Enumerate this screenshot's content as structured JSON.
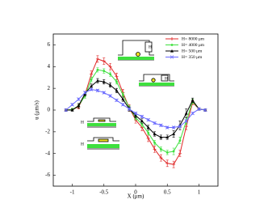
{
  "chart_data": {
    "type": "line",
    "xlabel": "X (μm)",
    "ylabel": "u (μm/s)",
    "x": [
      -1.1,
      -1.0,
      -0.9,
      -0.8,
      -0.7,
      -0.6,
      -0.5,
      -0.4,
      -0.3,
      -0.2,
      -0.1,
      0,
      0.1,
      0.2,
      0.3,
      0.4,
      0.5,
      0.6,
      0.7,
      0.8,
      0.9,
      1.0,
      1.1
    ],
    "series": [
      {
        "name": "H= 8000 μm",
        "color": "#e02828",
        "marker": "plus",
        "values": [
          0,
          0.05,
          0.3,
          1.4,
          3.3,
          4.7,
          4.5,
          4.0,
          3.1,
          1.6,
          0.2,
          -0.9,
          -1.6,
          -2.6,
          -3.6,
          -4.4,
          -4.9,
          -5.0,
          -4.0,
          -1.5,
          0.7,
          0.1,
          0
        ],
        "errors": [
          0.1,
          0.1,
          0.2,
          0.3,
          0.3,
          0.3,
          0.3,
          0.3,
          0.3,
          0.3,
          0.3,
          0.3,
          0.3,
          0.3,
          0.3,
          0.3,
          0.3,
          0.3,
          0.3,
          0.3,
          0.2,
          0.1,
          0.1
        ]
      },
      {
        "name": "H= 4000 μm",
        "color": "#3ee03e",
        "marker": "dot",
        "values": [
          0,
          0.05,
          0.4,
          1.3,
          2.8,
          3.7,
          3.6,
          3.3,
          2.6,
          1.4,
          0.2,
          -0.7,
          -1.3,
          -2.1,
          -3.0,
          -3.6,
          -3.9,
          -3.8,
          -2.8,
          -1.0,
          0.8,
          0.1,
          0
        ],
        "errors": [
          0.1,
          0.1,
          0.2,
          0.2,
          0.2,
          0.2,
          0.2,
          0.2,
          0.2,
          0.2,
          0.2,
          0.2,
          0.2,
          0.2,
          0.2,
          0.2,
          0.2,
          0.3,
          0.3,
          0.3,
          0.2,
          0.1,
          0.1
        ]
      },
      {
        "name": "H= 500 μm",
        "color": "#000000",
        "marker": "triangle",
        "values": [
          0,
          0,
          0.4,
          1.5,
          2.2,
          2.7,
          2.6,
          2.3,
          1.8,
          1.0,
          0.1,
          -0.5,
          -1.0,
          -1.6,
          -2.2,
          -2.5,
          -2.5,
          -2.2,
          -1.4,
          -0.3,
          0.9,
          0.1,
          0
        ],
        "errors": [
          0.1,
          0.1,
          0.2,
          0.2,
          0.2,
          0.2,
          0.2,
          0.2,
          0.2,
          0.2,
          0.2,
          0.2,
          0.2,
          0.2,
          0.2,
          0.2,
          0.2,
          0.3,
          0.4,
          0.4,
          0.2,
          0.1,
          0.1
        ]
      },
      {
        "name": "H= 350 μm",
        "color": "#6a6aff",
        "marker": "cross",
        "values": [
          0,
          0.5,
          1.0,
          1.6,
          1.9,
          1.8,
          1.6,
          1.3,
          0.9,
          0.5,
          0.1,
          -0.3,
          -0.6,
          -0.9,
          -1.2,
          -1.4,
          -1.6,
          -1.6,
          -1.5,
          -1.0,
          -0.3,
          0.1,
          0
        ],
        "errors": [
          0.1,
          0.1,
          0.1,
          0.1,
          0.1,
          0.1,
          0.1,
          0.1,
          0.1,
          0.1,
          0.1,
          0.1,
          0.1,
          0.1,
          0.1,
          0.1,
          0.1,
          0.1,
          0.1,
          0.1,
          0.1,
          0.1,
          0.1
        ]
      }
    ],
    "xlim": [
      -1.3,
      1.3
    ],
    "xticks": [
      -1,
      -0.5,
      0,
      0.5,
      1
    ],
    "ylim": [
      -7,
      7
    ],
    "yticks": [
      -6,
      -4,
      -2,
      0,
      2,
      4,
      6
    ],
    "inset_label": "H",
    "legend": "upper right"
  }
}
